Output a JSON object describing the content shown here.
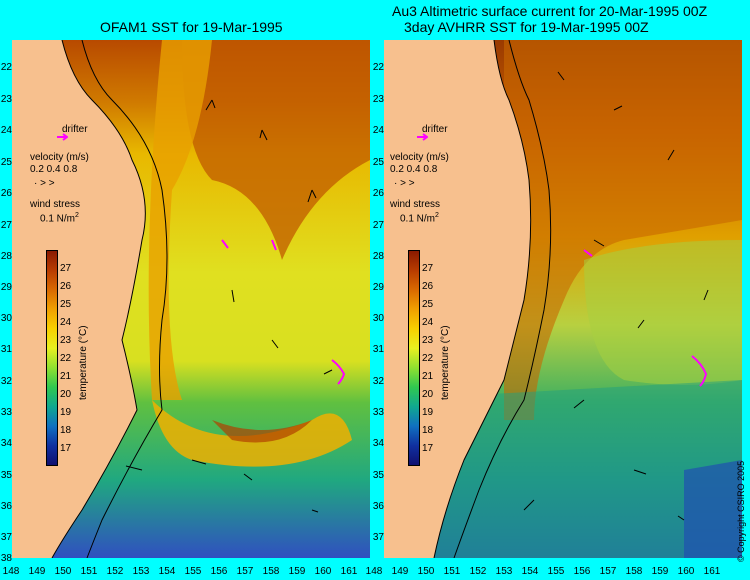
{
  "left_panel": {
    "title": "OFAM1 SST for 19-Mar-1995"
  },
  "right_panel": {
    "title_line1": "Au3 Altimetric surface current for 20-Mar-1995 00Z",
    "title_line2": "3day AVHRR SST for 19-Mar-1995 00Z"
  },
  "latitudes": [
    "22",
    "23",
    "24",
    "25",
    "26",
    "27",
    "28",
    "29",
    "30",
    "31",
    "32",
    "33",
    "34",
    "35",
    "36",
    "37",
    "38"
  ],
  "longitudes": [
    "148",
    "149",
    "150",
    "151",
    "152",
    "153",
    "154",
    "155",
    "156",
    "157",
    "158",
    "159",
    "160",
    "161"
  ],
  "legend": {
    "drifter": "drifter",
    "velocity_title": "velocity (m/s)",
    "velocity_values": "0.2 0.4 0.8",
    "wind_title": "wind stress",
    "wind_value": "0.1 N/m",
    "wind_sup": "2"
  },
  "colorbar": {
    "label": "temperature (°C)",
    "ticks": [
      "27",
      "26",
      "25",
      "24",
      "23",
      "22",
      "21",
      "20",
      "19",
      "18",
      "17"
    ],
    "colors": [
      "#8b1a00",
      "#b83c00",
      "#d96a00",
      "#f0a000",
      "#f8d000",
      "#e8f020",
      "#90e030",
      "#30c850",
      "#10a890",
      "#1070c0",
      "#1030a0",
      "#101070"
    ]
  },
  "copyright": "© Copyright CSIRO 2005",
  "colors": {
    "background": "#00ffff",
    "land": "#f7c08e",
    "coast": "#000000",
    "drifter": "#ff00ff"
  }
}
